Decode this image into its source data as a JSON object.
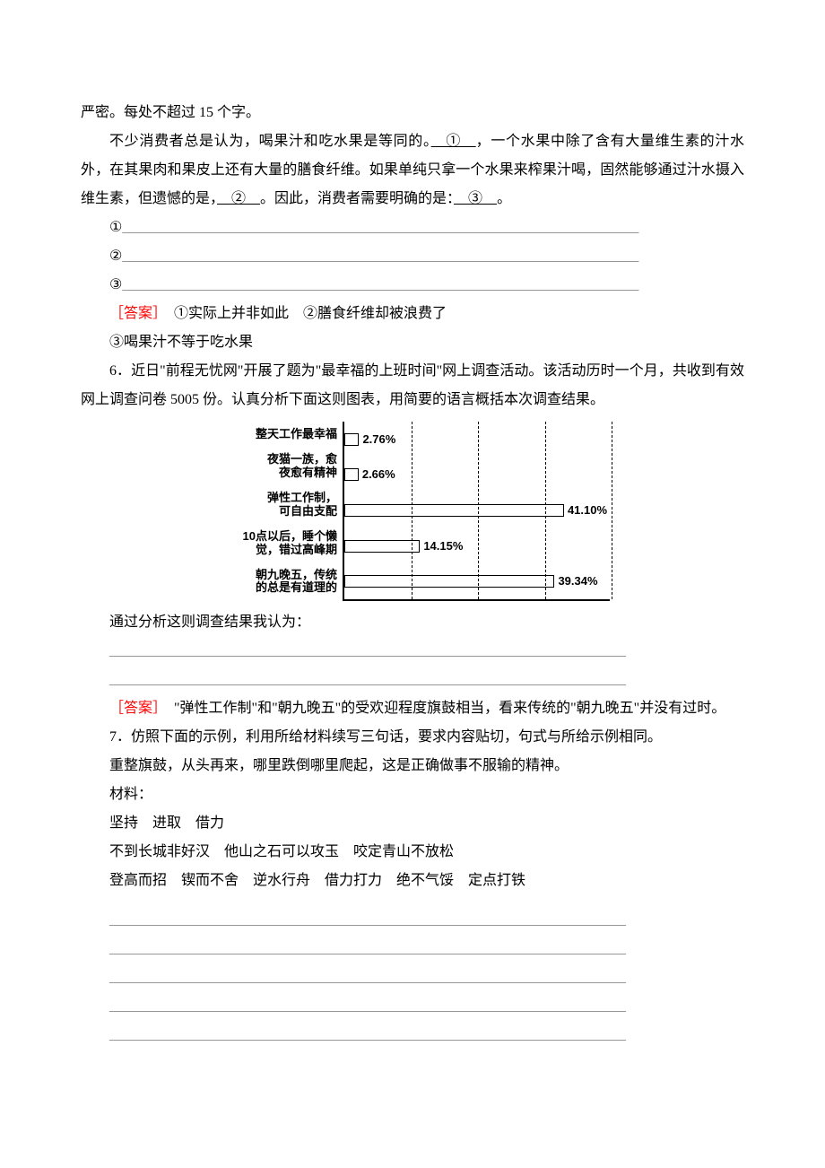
{
  "intro_tail": "严密。每处不超过 15 个字。",
  "q5_para": "不少消费者总是认为，喝果汁和吃水果是等同的。　①　，一个水果中除了含有大量维生素的汁水外，在其果肉和果皮上还有大量的膳食纤维。如果单纯只拿一个水果来榨果汁喝，固然能够通过汁水摄入维生素，但遗憾的是，　②　。因此，消费者需要明确的是：　③　。",
  "blank1": "①________________________________________________________________________",
  "blank2": "②________________________________________________________________________",
  "blank3": "③________________________________________________________________________",
  "answer_label": "［答案］",
  "q5_answer_a": "　①实际上并非如此　②膳食纤维却被浪费了",
  "q5_answer_b": "③喝果汁不等于吃水果",
  "q6_stem": "6．近日\"前程无忧网\"开展了题为\"最幸福的上班时间\"网上调查活动。该活动历时一个月，共收到有效网上调查问卷 5005 份。认真分析下面这则图表，用简要的语言概括本次调查结果。",
  "chart": {
    "type": "bar-horizontal",
    "max": 50,
    "gridlines": [
      12.5,
      25,
      37.5,
      50
    ],
    "bar_border": "#000000",
    "bar_fill": "#ffffff",
    "items": [
      {
        "label_l1": "整天工作最幸福",
        "label_l2": "",
        "value": 2.76,
        "text": "2.76%"
      },
      {
        "label_l1": "夜猫一族，愈",
        "label_l2": "夜愈有精神",
        "value": 2.66,
        "text": "2.66%"
      },
      {
        "label_l1": "弹性工作制，",
        "label_l2": "可自由支配",
        "value": 41.1,
        "text": "41.10%"
      },
      {
        "label_l1": "10点以后，睡个懒",
        "label_l2": "觉，错过高峰期",
        "value": 14.15,
        "text": "14.15%"
      },
      {
        "label_l1": "朝九晚五，传统",
        "label_l2": "的总是有道理的",
        "value": 39.34,
        "text": "39.34%"
      }
    ]
  },
  "q6_prompt": "通过分析这则调查结果我认为：",
  "long_blank": "________________________________________________________________________",
  "q6_answer": "　\"弹性工作制\"和\"朝九晚五\"的受欢迎程度旗鼓相当，看来传统的\"朝九晚五\"并没有过时。",
  "q7_stem": "7．仿照下面的示例，利用所给材料续写三句话，要求内容贴切，句式与所给示例相同。",
  "q7_example": "重整旗鼓，从头再来，哪里跌倒哪里爬起，这是正确做事不服输的精神。",
  "q7_mat_label": "材料：",
  "q7_mat_1": "坚持　进取　借力",
  "q7_mat_2": "不到长城非好汉　他山之石可以攻玉　咬定青山不放松",
  "q7_mat_3": "登高而招　锲而不舍　逆水行舟　借力打力　绝不气馁　定点打铁"
}
